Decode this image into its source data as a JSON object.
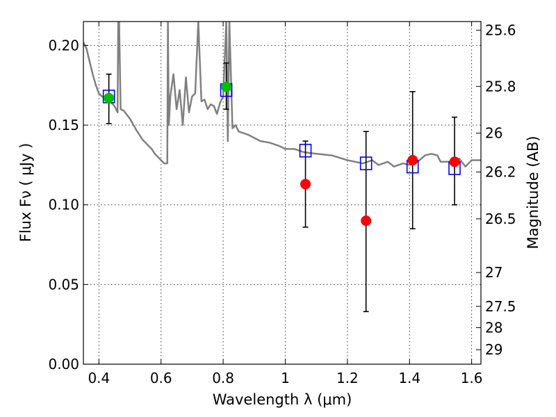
{
  "chart_data": {
    "type": "scatter",
    "xlabel": "Wavelength λ (μm)",
    "ylabel": "Flux Fν ( μJy )",
    "ylabel_right": "Magnitude (AB)",
    "xlim": [
      0.35,
      1.63
    ],
    "ylim": [
      0.0,
      0.215
    ],
    "grid": true,
    "x_ticks": [
      0.4,
      0.6,
      0.8,
      1.0,
      1.2,
      1.4,
      1.6
    ],
    "x_tick_labels": [
      "0.4",
      "0.6",
      "0.8",
      "1",
      "1.2",
      "1.4",
      "1.6"
    ],
    "y_ticks": [
      0.0,
      0.05,
      0.1,
      0.15,
      0.2
    ],
    "y_tick_labels": [
      "0.00",
      "0.05",
      "0.10",
      "0.15",
      "0.20"
    ],
    "right_ticks": [
      {
        "flux": 0.2096,
        "label": "25.6"
      },
      {
        "flux": 0.1743,
        "label": "25.8"
      },
      {
        "flux": 0.145,
        "label": "26"
      },
      {
        "flux": 0.1206,
        "label": "26.2"
      },
      {
        "flux": 0.0912,
        "label": "26.5"
      },
      {
        "flux": 0.0575,
        "label": "27"
      },
      {
        "flux": 0.0363,
        "label": "27.5"
      },
      {
        "flux": 0.0229,
        "label": "28"
      },
      {
        "flux": 0.0091,
        "label": "29"
      }
    ],
    "series": [
      {
        "kind": "line",
        "color": "#808080",
        "x": [
          0.35,
          0.36,
          0.37,
          0.38,
          0.39,
          0.4,
          0.41,
          0.42,
          0.43,
          0.44,
          0.45,
          0.46,
          0.462,
          0.465,
          0.47,
          0.48,
          0.5,
          0.52,
          0.54,
          0.55,
          0.56,
          0.57,
          0.58,
          0.59,
          0.6,
          0.61,
          0.62,
          0.622,
          0.625,
          0.63,
          0.64,
          0.65,
          0.66,
          0.67,
          0.68,
          0.69,
          0.7,
          0.71,
          0.72,
          0.73,
          0.74,
          0.75,
          0.76,
          0.77,
          0.78,
          0.79,
          0.8,
          0.81,
          0.815,
          0.82,
          0.83,
          0.84,
          0.85,
          0.88,
          0.9,
          0.92,
          0.95,
          0.98,
          1.0,
          1.03,
          1.06,
          1.1,
          1.15,
          1.2,
          1.25,
          1.28,
          1.3,
          1.33,
          1.35,
          1.38,
          1.4,
          1.42,
          1.45,
          1.47,
          1.49,
          1.5,
          1.52,
          1.54,
          1.56,
          1.58,
          1.6,
          1.63
        ],
        "y": [
          0.202,
          0.198,
          0.19,
          0.182,
          0.175,
          0.17,
          0.168,
          0.167,
          0.166,
          0.164,
          0.162,
          0.158,
          0.215,
          0.215,
          0.16,
          0.159,
          0.154,
          0.147,
          0.141,
          0.139,
          0.137,
          0.135,
          0.132,
          0.13,
          0.128,
          0.126,
          0.126,
          0.215,
          0.15,
          0.168,
          0.182,
          0.16,
          0.172,
          0.15,
          0.18,
          0.158,
          0.168,
          0.17,
          0.215,
          0.165,
          0.166,
          0.16,
          0.163,
          0.162,
          0.157,
          0.164,
          0.168,
          0.215,
          0.14,
          0.215,
          0.148,
          0.15,
          0.146,
          0.144,
          0.142,
          0.14,
          0.139,
          0.137,
          0.135,
          0.135,
          0.133,
          0.132,
          0.131,
          0.128,
          0.126,
          0.128,
          0.125,
          0.127,
          0.124,
          0.126,
          0.125,
          0.126,
          0.131,
          0.132,
          0.131,
          0.127,
          0.127,
          0.127,
          0.129,
          0.124,
          0.128,
          0.128
        ]
      },
      {
        "kind": "model-points",
        "marker": "open-square",
        "color": "#0000ff",
        "x": [
          0.432,
          0.81,
          1.065,
          1.26,
          1.41,
          1.545
        ],
        "y": [
          0.168,
          0.172,
          0.134,
          0.126,
          0.124,
          0.123
        ]
      },
      {
        "kind": "observed-green",
        "marker": "filled-circle",
        "color": "#00c000",
        "x": [
          0.432,
          0.81
        ],
        "y": [
          0.167,
          0.174
        ],
        "yerr_low": [
          0.151,
          0.16
        ],
        "yerr_high": [
          0.182,
          0.189
        ]
      },
      {
        "kind": "observed-red",
        "marker": "filled-circle",
        "color": "#ff0000",
        "x": [
          1.065,
          1.26,
          1.41,
          1.545
        ],
        "y": [
          0.113,
          0.09,
          0.128,
          0.127
        ],
        "yerr_low": [
          0.086,
          0.033,
          0.085,
          0.1
        ],
        "yerr_high": [
          0.14,
          0.146,
          0.171,
          0.155
        ]
      }
    ]
  }
}
